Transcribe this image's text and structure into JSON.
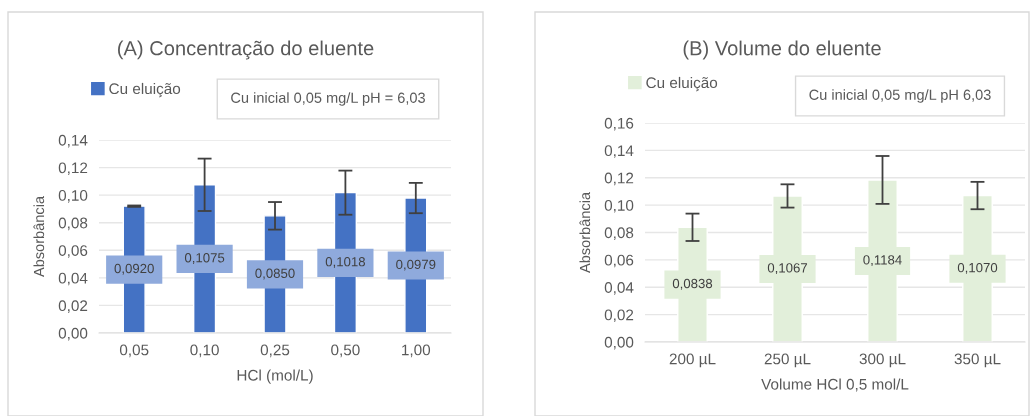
{
  "chart_data": [
    {
      "type": "bar",
      "title": "(A) Concentração do eluente",
      "xlabel": "HCl (mol/L)",
      "ylabel": "Absorbância",
      "categories": [
        "0,05",
        "0,10",
        "0,25",
        "0,50",
        "1,00"
      ],
      "series": [
        {
          "name": "Cu eluição",
          "color": "#4472c4",
          "values": [
            0.092,
            0.1075,
            0.085,
            0.1018,
            0.0979
          ],
          "errors": [
            0.0005,
            0.019,
            0.01,
            0.016,
            0.011
          ],
          "value_labels": [
            "0,0920",
            "0,1075",
            "0,0850",
            "0,1018",
            "0,0979"
          ]
        }
      ],
      "annotations": [
        "Cu inicial 0,05 mg/L pH = 6,03"
      ],
      "ylim": [
        0,
        0.14
      ],
      "yticks": [
        {
          "value": 0,
          "label": "0,00"
        },
        {
          "value": 0.02,
          "label": "0,02"
        },
        {
          "value": 0.04,
          "label": "0,04"
        },
        {
          "value": 0.06,
          "label": "0,06"
        },
        {
          "value": 0.08,
          "label": "0,08"
        },
        {
          "value": 0.1,
          "label": "0,10"
        },
        {
          "value": 0.12,
          "label": "0,12"
        },
        {
          "value": 0.14,
          "label": "0,14"
        }
      ],
      "grid": "y",
      "legend": "top"
    },
    {
      "type": "bar",
      "title": "(B) Volume do eluente",
      "xlabel": "Volume HCl 0,5 mol/L",
      "ylabel": "Absorbância",
      "categories": [
        "200 µL",
        "250 µL",
        "300 µL",
        "350 µL"
      ],
      "series": [
        {
          "name": "Cu eluição",
          "color": "#e2efda",
          "values": [
            0.0838,
            0.1067,
            0.1184,
            0.107
          ],
          "errors": [
            0.01,
            0.0085,
            0.0175,
            0.01
          ],
          "value_labels": [
            "0,0838",
            "0,1067",
            "0,1184",
            "0,1070"
          ]
        }
      ],
      "annotations": [
        "Cu inicial 0,05 mg/L pH 6,03"
      ],
      "ylim": [
        0,
        0.16
      ],
      "yticks": [
        {
          "value": 0,
          "label": "0,00"
        },
        {
          "value": 0.02,
          "label": "0,02"
        },
        {
          "value": 0.04,
          "label": "0,04"
        },
        {
          "value": 0.06,
          "label": "0,06"
        },
        {
          "value": 0.08,
          "label": "0,08"
        },
        {
          "value": 0.1,
          "label": "0,10"
        },
        {
          "value": 0.12,
          "label": "0,12"
        },
        {
          "value": 0.14,
          "label": "0,14"
        },
        {
          "value": 0.16,
          "label": "0,16"
        }
      ],
      "grid": "y",
      "legend": "top"
    }
  ]
}
